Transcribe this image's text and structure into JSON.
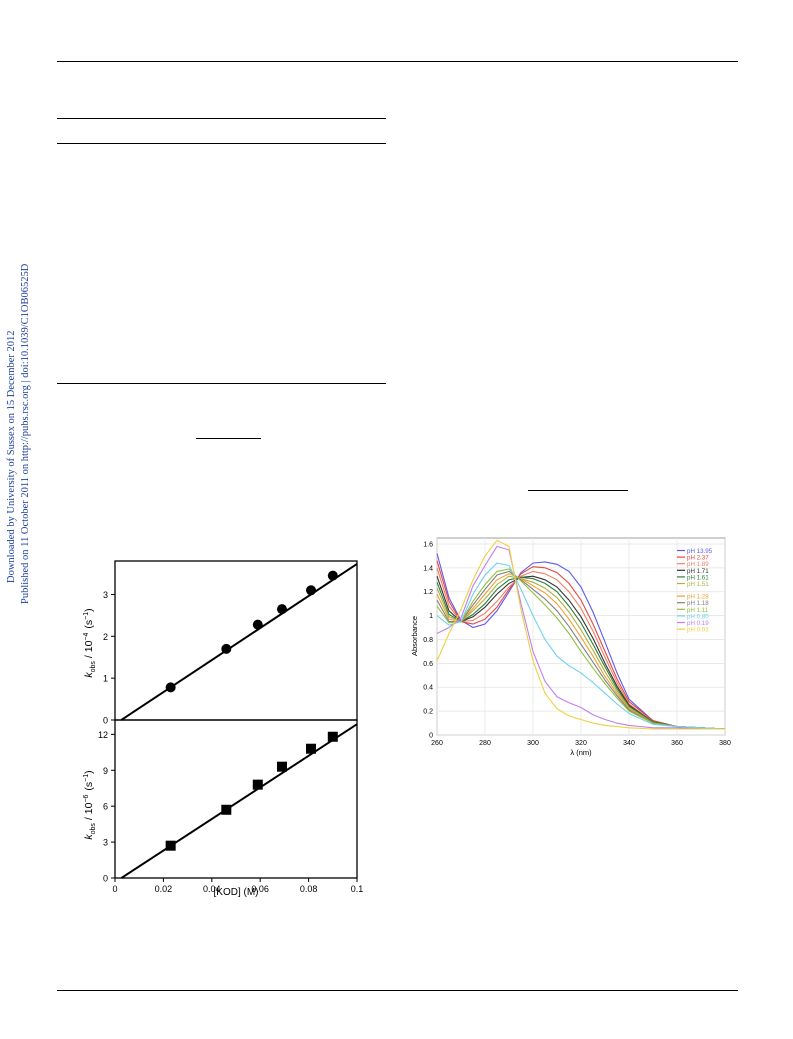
{
  "side_note": {
    "line1": "Downloaded by University of Sussex on 15 December 2012",
    "line2": "Published on 11 October 2011 on http://pubs.rsc.org | doi:10.1039/C1OB06525D"
  },
  "chart_data": [
    {
      "type": "scatter",
      "panel": "top",
      "marker": "circle",
      "x": [
        0.023,
        0.046,
        0.059,
        0.069,
        0.081,
        0.09
      ],
      "y": [
        0.78,
        1.7,
        2.28,
        2.65,
        3.1,
        3.45
      ],
      "fit_line": {
        "slope": 38.3,
        "intercept": -0.1
      },
      "xlim": [
        0,
        0.1
      ],
      "ylim": [
        0,
        3.8
      ],
      "yticks": [
        "0",
        "1",
        "2",
        "3"
      ],
      "ylabel_main": "k",
      "ylabel_sub": "obs",
      "ylabel_rest": "/ 10",
      "ylabel_exp": "−4",
      "ylabel_unit": "(s",
      "ylabel_unit_exp": "−1",
      "ylabel_close": ")"
    },
    {
      "type": "scatter",
      "panel": "bottom",
      "marker": "square",
      "x": [
        0.023,
        0.046,
        0.059,
        0.069,
        0.081,
        0.09
      ],
      "y": [
        2.7,
        5.7,
        7.8,
        9.3,
        10.8,
        11.8
      ],
      "fit_line": {
        "slope": 132,
        "intercept": -0.35
      },
      "xlim": [
        0,
        0.1
      ],
      "ylim": [
        0,
        13.2
      ],
      "xticks": [
        "0",
        "0.02",
        "0.04",
        "0.06",
        "0.08",
        "0.1"
      ],
      "yticks": [
        "0",
        "3",
        "6",
        "9",
        "12"
      ],
      "xlabel": "[KOD] (M)",
      "ylabel_main": "k",
      "ylabel_sub": "obs",
      "ylabel_rest": "/ 10",
      "ylabel_exp": "−6",
      "ylabel_unit": "(s",
      "ylabel_unit_exp": "−1",
      "ylabel_close": ")"
    },
    {
      "type": "line",
      "panel": "spectra",
      "xlabel": "λ (nm)",
      "ylabel": "Absorbance",
      "xlim": [
        260,
        380
      ],
      "ylim": [
        0,
        1.65
      ],
      "xticks": [
        "260",
        "280",
        "300",
        "320",
        "340",
        "360",
        "380"
      ],
      "yticks": [
        "0",
        "0.2",
        "0.4",
        "0.6",
        "0.8",
        "1",
        "1.2",
        "1.4",
        "1.6"
      ],
      "x": [
        260,
        265,
        270,
        275,
        280,
        285,
        290,
        295,
        300,
        305,
        310,
        315,
        320,
        325,
        330,
        335,
        340,
        350,
        360,
        370,
        380
      ],
      "series": [
        {
          "name": "pH 13.95",
          "color": "#5a5af0",
          "values": [
            1.52,
            1.15,
            0.96,
            0.9,
            0.93,
            1.04,
            1.2,
            1.36,
            1.44,
            1.45,
            1.43,
            1.37,
            1.24,
            1.03,
            0.78,
            0.52,
            0.3,
            0.12,
            0.07,
            0.06,
            0.05
          ]
        },
        {
          "name": "pH 2.37",
          "color": "#e84545",
          "values": [
            1.46,
            1.12,
            0.95,
            0.93,
            0.97,
            1.07,
            1.22,
            1.35,
            1.41,
            1.4,
            1.36,
            1.27,
            1.13,
            0.93,
            0.7,
            0.47,
            0.28,
            0.12,
            0.07,
            0.06,
            0.05
          ]
        },
        {
          "name": "pH 1.89",
          "color": "#f08060",
          "values": [
            1.4,
            1.08,
            0.95,
            0.96,
            1.02,
            1.12,
            1.24,
            1.33,
            1.37,
            1.35,
            1.3,
            1.2,
            1.06,
            0.87,
            0.65,
            0.44,
            0.26,
            0.11,
            0.07,
            0.06,
            0.05
          ]
        },
        {
          "name": "pH 1.71",
          "color": "#333333",
          "values": [
            1.33,
            1.04,
            0.95,
            0.99,
            1.07,
            1.18,
            1.27,
            1.32,
            1.33,
            1.3,
            1.24,
            1.13,
            0.99,
            0.81,
            0.6,
            0.41,
            0.25,
            0.11,
            0.07,
            0.06,
            0.05
          ]
        },
        {
          "name": "pH 1.61",
          "color": "#2f7f3f",
          "values": [
            1.28,
            1.01,
            0.95,
            1.01,
            1.1,
            1.22,
            1.3,
            1.32,
            1.31,
            1.27,
            1.2,
            1.08,
            0.94,
            0.76,
            0.57,
            0.39,
            0.24,
            0.11,
            0.07,
            0.06,
            0.05
          ]
        },
        {
          "name": "pH 1.51",
          "color": "#b0b040",
          "values": [
            1.23,
            0.99,
            0.95,
            1.04,
            1.14,
            1.26,
            1.33,
            1.31,
            1.28,
            1.23,
            1.15,
            1.03,
            0.88,
            0.71,
            0.53,
            0.37,
            0.23,
            0.1,
            0.07,
            0.06,
            0.05
          ]
        },
        {
          "name": "pH 1.28",
          "color": "#f0a030",
          "values": [
            1.18,
            0.97,
            0.95,
            1.06,
            1.18,
            1.3,
            1.35,
            1.31,
            1.25,
            1.19,
            1.1,
            0.97,
            0.82,
            0.66,
            0.49,
            0.35,
            0.22,
            0.1,
            0.07,
            0.06,
            0.05
          ]
        },
        {
          "name": "pH 1.18",
          "color": "#808080",
          "values": [
            1.13,
            0.95,
            0.95,
            1.09,
            1.22,
            1.34,
            1.37,
            1.3,
            1.22,
            1.14,
            1.04,
            0.91,
            0.76,
            0.61,
            0.46,
            0.33,
            0.21,
            0.1,
            0.07,
            0.06,
            0.05
          ]
        },
        {
          "name": "pH 1.11",
          "color": "#90c040",
          "values": [
            1.08,
            0.94,
            0.95,
            1.12,
            1.26,
            1.37,
            1.39,
            1.29,
            1.19,
            1.09,
            0.98,
            0.85,
            0.7,
            0.56,
            0.43,
            0.31,
            0.2,
            0.1,
            0.07,
            0.06,
            0.05
          ]
        },
        {
          "name": "pH 0.80",
          "color": "#70d0f0",
          "values": [
            1.0,
            0.92,
            0.95,
            1.18,
            1.34,
            1.44,
            1.42,
            1.22,
            1.0,
            0.8,
            0.66,
            0.58,
            0.52,
            0.44,
            0.35,
            0.26,
            0.18,
            0.09,
            0.07,
            0.06,
            0.05
          ]
        },
        {
          "name": "pH 0.19",
          "color": "#c080f0",
          "values": [
            0.85,
            0.9,
            0.98,
            1.25,
            1.42,
            1.58,
            1.55,
            1.1,
            0.7,
            0.45,
            0.32,
            0.27,
            0.23,
            0.17,
            0.13,
            0.1,
            0.08,
            0.06,
            0.06,
            0.05,
            0.05
          ]
        },
        {
          "name": "pH 0.03",
          "color": "#f0d040",
          "values": [
            0.62,
            0.85,
            1.05,
            1.3,
            1.5,
            1.63,
            1.58,
            1.05,
            0.62,
            0.35,
            0.22,
            0.16,
            0.13,
            0.1,
            0.08,
            0.07,
            0.06,
            0.05,
            0.05,
            0.05,
            0.05
          ]
        }
      ]
    }
  ]
}
